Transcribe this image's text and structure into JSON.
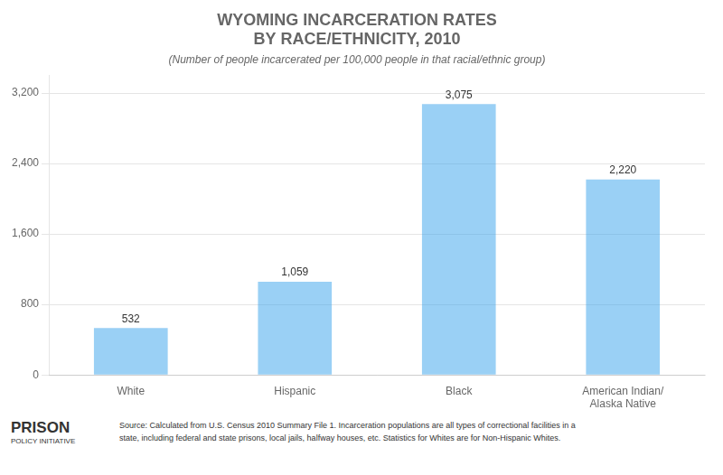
{
  "chart_data": {
    "type": "bar",
    "title": [
      "WYOMING INCARCERATION RATES",
      "BY RACE/ETHNICITY, 2010"
    ],
    "subtitle": "(Number of people incarcerated per 100,000 people in that racial/ethnic group)",
    "categories": [
      "White",
      "Hispanic",
      "Black",
      "American Indian/\nAlaska Native"
    ],
    "values": [
      532,
      1059,
      3075,
      2220
    ],
    "value_labels": [
      "532",
      "1,059",
      "3,075",
      "2,220"
    ],
    "data_labels": true,
    "ylim": [
      0,
      3400
    ],
    "yticks": [
      0,
      800,
      {
        "value": 1600,
        "label": "1,600"
      },
      {
        "value": 2400,
        "label": "2,400"
      },
      {
        "value": 3200,
        "label": "3,200"
      }
    ],
    "grid": true,
    "annotations": [
      "PRISON",
      "POLICY INITIATIVE",
      "Source: Calculated from U.S. Census 2010 Summary File 1. Incarceration populations are all types of correctional facilities in a\nstate, including federal and state prisons, local jails, halfway houses, etc. Statistics for Whites are for Non-Hispanic Whites."
    ]
  }
}
